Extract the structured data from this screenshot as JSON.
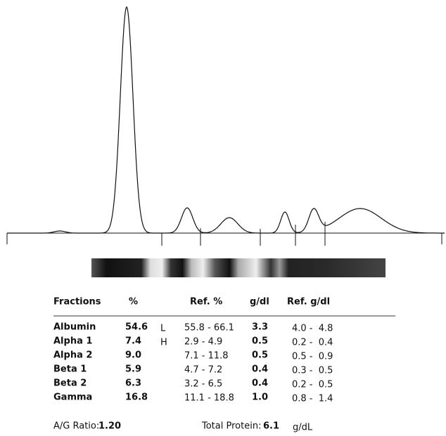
{
  "table": {
    "header": [
      "Fractions",
      "%",
      "Ref. %",
      "g/dl",
      "Ref. g/dl"
    ],
    "rows": [
      {
        "fraction": "Albumin",
        "percent": "54.6",
        "flag": "L",
        "ref_percent": "55.8 - 66.1",
        "gdl": "3.3",
        "ref_gdl": "4.0 -  4.8"
      },
      {
        "fraction": "Alpha 1",
        "percent": "7.4",
        "flag": "H",
        "ref_percent": "2.9 -  4.9",
        "gdl": "0.5",
        "ref_gdl": "0.2 -  0.4"
      },
      {
        "fraction": "Alpha 2",
        "percent": "9.0",
        "ref_percent": "7.1 - 11.8",
        "gdl": "0.5",
        "ref_gdl": "0.5 -  0.9"
      },
      {
        "fraction": "Beta 1",
        "percent": "5.9",
        "ref_percent": "4.7 -  7.2",
        "gdl": "0.4",
        "ref_gdl": "0.3 -  0.5"
      },
      {
        "fraction": "Beta 2",
        "percent": "6.3",
        "ref_percent": "3.2 -  6.5",
        "gdl": "0.4",
        "ref_gdl": "0.2 -  0.5"
      },
      {
        "fraction": "Gamma",
        "percent": "16.8",
        "ref_percent": "11.1 - 18.8",
        "gdl": "1.0",
        "ref_gdl": "0.8 -  1.4"
      }
    ]
  },
  "footer": {
    "ag_label": "A/G Ratio:",
    "ag_value": "1.20",
    "tp_label": "Total Protein:",
    "tp_value": "6.1",
    "tp_unit": "g/dL"
  }
}
